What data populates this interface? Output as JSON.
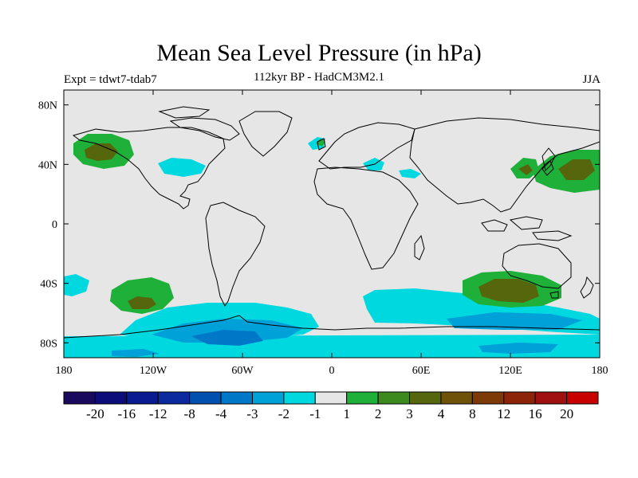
{
  "title": "Mean Sea Level Pressure (in hPa)",
  "subtitle": "112kyr BP - HadCM3M2.1",
  "expt_label": "Expt = tdwt7-tdab7",
  "season": "JJA",
  "map": {
    "projection": "cylindrical-equidistant",
    "lon_range": [
      -180,
      180
    ],
    "lat_range": [
      -90,
      90
    ],
    "background_color": "#e6e6e6",
    "x_ticks": [
      {
        "lon": -180,
        "label": "180"
      },
      {
        "lon": -120,
        "label": "120W"
      },
      {
        "lon": -60,
        "label": "60W"
      },
      {
        "lon": 0,
        "label": "0"
      },
      {
        "lon": 60,
        "label": "60E"
      },
      {
        "lon": 120,
        "label": "120E"
      },
      {
        "lon": 180,
        "label": "180"
      }
    ],
    "y_ticks": [
      {
        "lat": 80,
        "label": "80N"
      },
      {
        "lat": 40,
        "label": "40N"
      },
      {
        "lat": 0,
        "label": "0"
      },
      {
        "lat": -40,
        "label": "40S"
      },
      {
        "lat": -80,
        "label": "80S"
      }
    ]
  },
  "colorbar": {
    "colors": [
      "#1a0a5e",
      "#0d0d7a",
      "#0a1a90",
      "#0a2a9e",
      "#0050b0",
      "#0078c8",
      "#00a0d8",
      "#00d8e0",
      "#e6e6e6",
      "#1fb03a",
      "#3c8a1e",
      "#56660c",
      "#6e5208",
      "#7e3a06",
      "#8c2408",
      "#a01010",
      "#c80000"
    ],
    "labels": [
      "-20",
      "-16",
      "-12",
      "-8",
      "-4",
      "-3",
      "-2",
      "-1",
      "1",
      "2",
      "3",
      "4",
      "8",
      "12",
      "16",
      "20"
    ]
  }
}
